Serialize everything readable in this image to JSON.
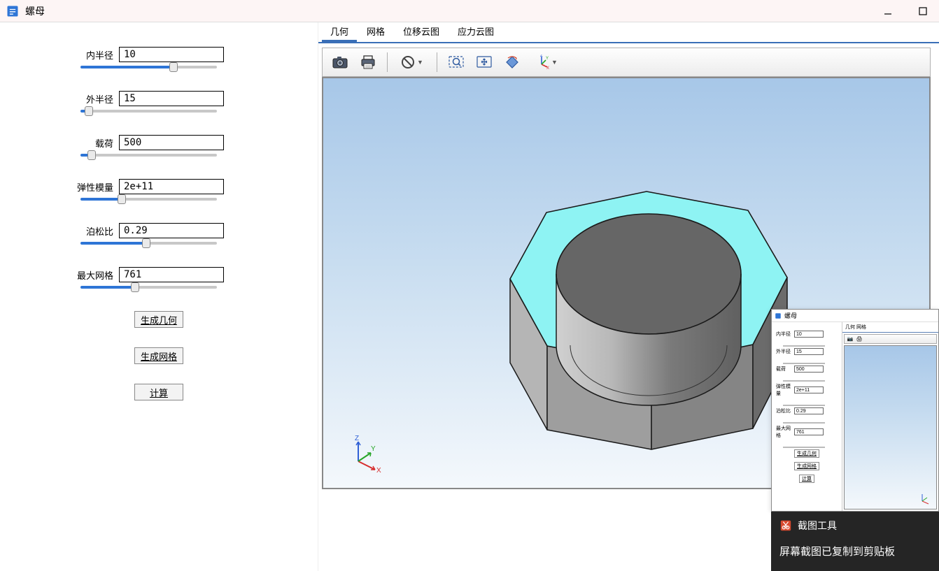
{
  "app": {
    "title": "螺母",
    "icon_color": "#2e75d6"
  },
  "params": [
    {
      "label": "内半径",
      "value": "10",
      "slider_pct": 68
    },
    {
      "label": "外半径",
      "value": "15",
      "slider_pct": 6
    },
    {
      "label": "载荷",
      "value": "500",
      "slider_pct": 8
    },
    {
      "label": "弹性模量",
      "value": "2e+11",
      "slider_pct": 30
    },
    {
      "label": "泊松比",
      "value": "0.29",
      "slider_pct": 48
    },
    {
      "label": "最大网格",
      "value": "761",
      "slider_pct": 40
    }
  ],
  "buttons": {
    "gen_geometry": "生成几何",
    "gen_mesh": "生成网格",
    "compute": "计算"
  },
  "tabs": {
    "items": [
      "几何",
      "网格",
      "位移云图",
      "应力云图"
    ],
    "active_index": 0
  },
  "toolbar_icons": {
    "camera": "camera-icon",
    "printer": "printer-icon",
    "no_entry": "no-entry-icon",
    "zoom_area": "zoom-area-icon",
    "pan": "pan-icon",
    "rotate": "rotate-icon",
    "axis": "axis-icon"
  },
  "viewport": {
    "gradient_top": "#a7c7e8",
    "gradient_mid": "#c8ddf0",
    "gradient_bottom": "#f4f8fc",
    "nut_top_color": "#8ef3f3",
    "nut_top_shadow": "#6dddde",
    "nut_hole_inner_light": "#c0c0c0",
    "nut_hole_inner_dark": "#7a7a7a",
    "nut_side_colors": [
      "#bfbfbf",
      "#a2a2a2",
      "#888888",
      "#707070",
      "#5c5c5c"
    ],
    "edge_color": "#0a0a0a",
    "axis_labels": {
      "x": "X",
      "y": "Y",
      "z": "Z"
    },
    "axis_colors": {
      "x": "#d62d2d",
      "y": "#27a627",
      "z": "#3060d6"
    }
  },
  "preview": {
    "title": "螺母",
    "tabs_text": "几何  网格",
    "axis_labels": {
      "x": "X",
      "y": "Y",
      "z": "Z"
    }
  },
  "toast": {
    "title": "截图工具",
    "body": "屏幕截图已复制到剪贴板"
  }
}
